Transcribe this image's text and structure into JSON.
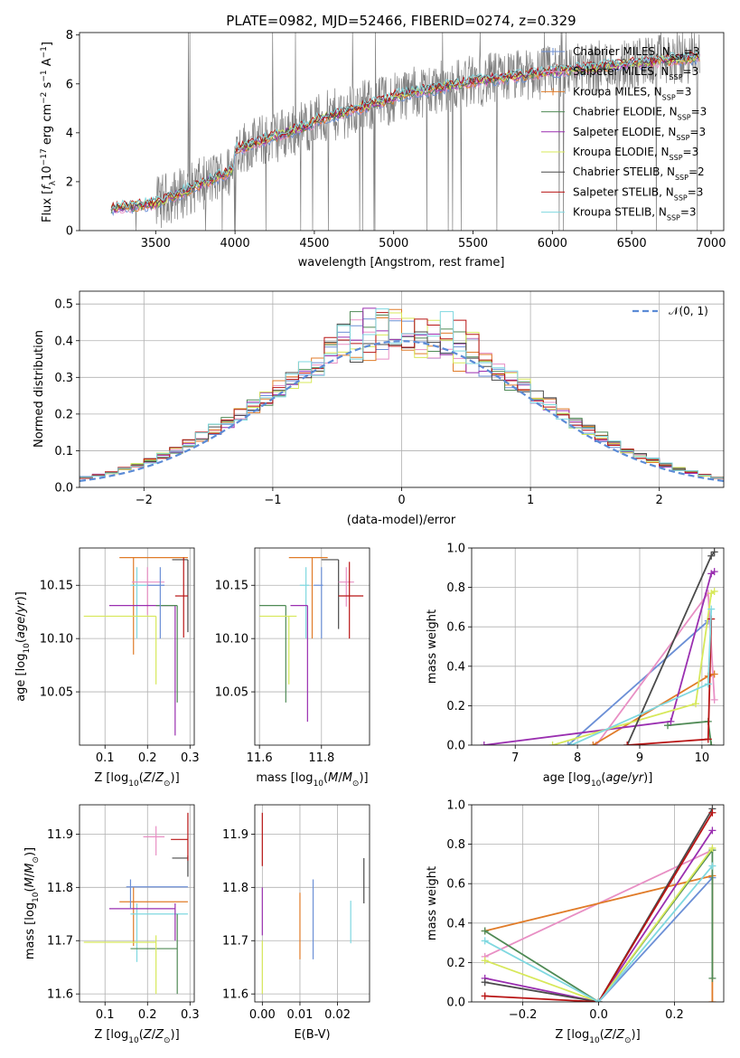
{
  "title": "PLATE=0982, MJD=52466, FIBERID=0274, z=0.329",
  "colors": {
    "Chabrier MILES": "#6b8fd6",
    "Salpeter MILES": "#e88fc4",
    "Kroupa MILES": "#e07b28",
    "Chabrier ELODIE": "#4f8a55",
    "Salpeter ELODIE": "#9a2fb0",
    "Kroupa ELODIE": "#d7e85a",
    "Chabrier STELIB": "#4a4a4a",
    "Salpeter STELIB": "#b81414",
    "Kroupa STELIB": "#7fd8e0",
    "data": "#7f7f7f",
    "normal": "#5b8bd6"
  },
  "chart_data": [
    {
      "id": "spectrum",
      "type": "line",
      "title": "PLATE=0982, MJD=52466, FIBERID=0274, z=0.329",
      "xlabel": "wavelength [Angstrom, rest frame]",
      "ylabel_parts": [
        "Flux [",
        "f",
        "λ",
        "10",
        "−17",
        " erg cm",
        "−2",
        " s",
        "−1",
        " A",
        "−1",
        "]"
      ],
      "xlim": [
        3020,
        7080
      ],
      "ylim": [
        0,
        8.1
      ],
      "xticks": [
        3500,
        4000,
        4500,
        5000,
        5500,
        6000,
        6500,
        7000
      ],
      "yticks": [
        0,
        2,
        4,
        6,
        8
      ],
      "x_range": [
        3220,
        6930
      ],
      "legend": [
        {
          "label": "Chabrier MILES, N",
          "sub": "SSP",
          "suffix": "=3",
          "color": "#6b8fd6"
        },
        {
          "label": "Salpeter MILES, N",
          "sub": "SSP",
          "suffix": "=3",
          "color": "#e88fc4"
        },
        {
          "label": "Kroupa MILES, N",
          "sub": "SSP",
          "suffix": "=3",
          "color": "#e07b28"
        },
        {
          "label": "Chabrier ELODIE, N",
          "sub": "SSP",
          "suffix": "=3",
          "color": "#4f8a55"
        },
        {
          "label": "Salpeter ELODIE, N",
          "sub": "SSP",
          "suffix": "=3",
          "color": "#9a2fb0"
        },
        {
          "label": "Kroupa ELODIE, N",
          "sub": "SSP",
          "suffix": "=3",
          "color": "#d7e85a"
        },
        {
          "label": "Chabrier STELIB, N",
          "sub": "SSP",
          "suffix": "=2",
          "color": "#4a4a4a"
        },
        {
          "label": "Salpeter STELIB, N",
          "sub": "SSP",
          "suffix": "=3",
          "color": "#b81414"
        },
        {
          "label": "Kroupa STELIB, N",
          "sub": "SSP",
          "suffix": "=3",
          "color": "#7fd8e0"
        }
      ]
    },
    {
      "id": "residuals",
      "type": "histogram",
      "xlabel": "(data-model)/error",
      "ylabel": "Normed distribution",
      "xlim": [
        -2.5,
        2.5
      ],
      "ylim": [
        0,
        0.535
      ],
      "xticks": [
        -2,
        -1,
        0,
        1,
        2
      ],
      "yticks": [
        0.0,
        0.1,
        0.2,
        0.3,
        0.4,
        0.5
      ],
      "bin_width": 0.1,
      "legend": [
        {
          "label": "𝒩(0, 1)",
          "color": "#5b8bd6",
          "dashed": true
        }
      ],
      "peaks": [
        0.38,
        0.5,
        0.4,
        0.45,
        0.41,
        0.37,
        0.45,
        0.44,
        0.4
      ],
      "series_count": 9
    },
    {
      "id": "age_vs_Z",
      "type": "errorbar",
      "xlabel": "Z [log10(Z/Z⊙)]",
      "ylabel": "age  [log10(age/yr)]",
      "xlim": [
        0.04,
        0.31
      ],
      "ylim": [
        10.0,
        10.185
      ],
      "xticks": [
        0.1,
        0.2,
        0.3
      ],
      "yticks": [
        10.05,
        10.1,
        10.15
      ],
      "points": [
        {
          "color": "#e07b28",
          "x": 0.167,
          "y": 10.176,
          "xerr": [
            0.134,
            0.295
          ],
          "yerr": [
            10.085,
            10.176
          ]
        },
        {
          "color": "#4a4a4a",
          "x": 0.295,
          "y": 10.174,
          "xerr": [
            0.258,
            0.295
          ],
          "yerr": [
            10.106,
            10.174
          ]
        },
        {
          "color": "#7fd8e0",
          "x": 0.175,
          "y": 10.15,
          "xerr": [
            0.16,
            0.2
          ],
          "yerr": [
            10.1,
            10.167
          ]
        },
        {
          "color": "#e88fc4",
          "x": 0.2,
          "y": 10.153,
          "xerr": [
            0.163,
            0.24
          ],
          "yerr": [
            10.122,
            10.167
          ]
        },
        {
          "color": "#b81414",
          "x": 0.285,
          "y": 10.14,
          "xerr": [
            0.265,
            0.295
          ],
          "yerr": [
            10.101,
            10.176
          ]
        },
        {
          "color": "#9a2fb0",
          "x": 0.265,
          "y": 10.131,
          "xerr": [
            0.11,
            0.265
          ],
          "yerr": [
            10.009,
            10.131
          ]
        },
        {
          "color": "#4f8a55",
          "x": 0.27,
          "y": 10.131,
          "xerr": [
            0.22,
            0.27
          ],
          "yerr": [
            10.04,
            10.131
          ]
        },
        {
          "color": "#d7e85a",
          "x": 0.22,
          "y": 10.121,
          "xerr": [
            0.05,
            0.22
          ],
          "yerr": [
            10.057,
            10.121
          ]
        },
        {
          "color": "#6b8fd6",
          "x": 0.23,
          "y": 10.15,
          "xerr": [
            0.2,
            0.24
          ],
          "yerr": [
            10.1,
            10.167
          ]
        }
      ]
    },
    {
      "id": "age_vs_mass",
      "type": "errorbar",
      "xlabel": "mass [log10(M/M⊙)]",
      "ylabel": "",
      "xlim": [
        11.585,
        11.955
      ],
      "ylim": [
        10.0,
        10.185
      ],
      "xticks": [
        11.6,
        11.8
      ],
      "yticks": [
        10.05,
        10.1,
        10.15
      ],
      "points": [
        {
          "color": "#e07b28",
          "x": 11.77,
          "y": 10.176,
          "xerr": [
            11.695,
            11.82
          ],
          "yerr": [
            10.1,
            10.176
          ]
        },
        {
          "color": "#4a4a4a",
          "x": 11.855,
          "y": 10.174,
          "xerr": [
            11.8,
            11.855
          ],
          "yerr": [
            10.109,
            10.174
          ]
        },
        {
          "color": "#7fd8e0",
          "x": 11.75,
          "y": 10.15,
          "xerr": [
            11.73,
            11.76
          ],
          "yerr": [
            10.1,
            10.167
          ]
        },
        {
          "color": "#e88fc4",
          "x": 11.88,
          "y": 10.153,
          "xerr": [
            11.855,
            11.905
          ],
          "yerr": [
            10.13,
            10.167
          ]
        },
        {
          "color": "#b81414",
          "x": 11.89,
          "y": 10.14,
          "xerr": [
            11.855,
            11.935
          ],
          "yerr": [
            10.1,
            10.172
          ]
        },
        {
          "color": "#9a2fb0",
          "x": 11.755,
          "y": 10.131,
          "xerr": [
            11.7,
            11.755
          ],
          "yerr": [
            10.022,
            10.131
          ]
        },
        {
          "color": "#4f8a55",
          "x": 11.685,
          "y": 10.131,
          "xerr": [
            11.6,
            11.685
          ],
          "yerr": [
            10.04,
            10.131
          ]
        },
        {
          "color": "#d7e85a",
          "x": 11.695,
          "y": 10.121,
          "xerr": [
            11.6,
            11.72
          ],
          "yerr": [
            10.057,
            10.121
          ]
        },
        {
          "color": "#6b8fd6",
          "x": 11.8,
          "y": 10.15,
          "xerr": [
            11.775,
            11.805
          ],
          "yerr": [
            10.1,
            10.167
          ]
        }
      ]
    },
    {
      "id": "massweight_vs_age",
      "type": "line",
      "xlabel": "age  [log10(age/yr)]",
      "ylabel": "mass weight",
      "xlim": [
        6.3,
        10.35
      ],
      "ylim": [
        0,
        1.0
      ],
      "xticks": [
        7,
        8,
        9,
        10
      ],
      "yticks": [
        0.0,
        0.2,
        0.4,
        0.6,
        0.8,
        1.0
      ],
      "series": [
        {
          "color": "#6b8fd6",
          "x": [
            7.85,
            10.1
          ],
          "y": [
            0.0,
            0.63
          ]
        },
        {
          "color": "#e88fc4",
          "x": [
            8.3,
            10.1,
            10.2
          ],
          "y": [
            0.0,
            0.77,
            0.23
          ]
        },
        {
          "color": "#e07b28",
          "x": [
            8.25,
            10.1,
            10.2
          ],
          "y": [
            0.0,
            0.35,
            0.36
          ]
        },
        {
          "color": "#4f8a55",
          "x": [
            9.45,
            10.1,
            10.15
          ],
          "y": [
            0.1,
            0.12,
            0.0
          ]
        },
        {
          "color": "#9a2fb0",
          "x": [
            6.5,
            9.5,
            10.15,
            10.2
          ],
          "y": [
            0.0,
            0.12,
            0.87,
            0.88
          ]
        },
        {
          "color": "#d7e85a",
          "x": [
            7.6,
            9.9,
            10.15,
            10.2
          ],
          "y": [
            0.0,
            0.21,
            0.77,
            0.78
          ]
        },
        {
          "color": "#4a4a4a",
          "x": [
            8.8,
            10.15,
            10.2
          ],
          "y": [
            0.0,
            0.96,
            0.98
          ]
        },
        {
          "color": "#b81414",
          "x": [
            8.8,
            10.1,
            10.15
          ],
          "y": [
            0.0,
            0.03,
            0.64
          ]
        },
        {
          "color": "#7fd8e0",
          "x": [
            7.9,
            10.1,
            10.15
          ],
          "y": [
            0.0,
            0.31,
            0.69
          ]
        }
      ]
    },
    {
      "id": "mass_vs_Z",
      "type": "errorbar",
      "xlabel": "Z [log10(Z/Z⊙)]",
      "ylabel": "mass [log10(M/M⊙)]",
      "xlim": [
        0.04,
        0.31
      ],
      "ylim": [
        11.585,
        11.955
      ],
      "xticks": [
        0.1,
        0.2,
        0.3
      ],
      "yticks": [
        11.6,
        11.7,
        11.8,
        11.9
      ],
      "points": [
        {
          "color": "#e07b28",
          "x": 0.167,
          "y": 11.773,
          "xerr": [
            0.134,
            0.295
          ],
          "yerr": [
            11.69,
            11.8
          ]
        },
        {
          "color": "#4a4a4a",
          "x": 0.295,
          "y": 11.855,
          "xerr": [
            0.258,
            0.295
          ],
          "yerr": [
            11.82,
            11.86
          ]
        },
        {
          "color": "#7fd8e0",
          "x": 0.175,
          "y": 11.75,
          "xerr": [
            0.16,
            0.295
          ],
          "yerr": [
            11.66,
            11.77
          ]
        },
        {
          "color": "#e88fc4",
          "x": 0.22,
          "y": 11.895,
          "xerr": [
            0.19,
            0.24
          ],
          "yerr": [
            11.86,
            11.915
          ]
        },
        {
          "color": "#b81414",
          "x": 0.295,
          "y": 11.89,
          "xerr": [
            0.255,
            0.295
          ],
          "yerr": [
            11.85,
            11.94
          ]
        },
        {
          "color": "#9a2fb0",
          "x": 0.265,
          "y": 11.76,
          "xerr": [
            0.11,
            0.265
          ],
          "yerr": [
            11.7,
            11.77
          ]
        },
        {
          "color": "#4f8a55",
          "x": 0.27,
          "y": 11.685,
          "xerr": [
            0.16,
            0.27
          ],
          "yerr": [
            11.6,
            11.75
          ]
        },
        {
          "color": "#d7e85a",
          "x": 0.22,
          "y": 11.697,
          "xerr": [
            0.05,
            0.22
          ],
          "yerr": [
            11.6,
            11.71
          ]
        },
        {
          "color": "#6b8fd6",
          "x": 0.16,
          "y": 11.801,
          "xerr": [
            0.15,
            0.295
          ],
          "yerr": [
            11.76,
            11.815
          ]
        }
      ]
    },
    {
      "id": "mass_vs_ebv",
      "type": "errorbar",
      "xlabel": "E(B-V)",
      "ylabel": "",
      "xlim": [
        -0.002,
        0.0285
      ],
      "ylim": [
        11.585,
        11.955
      ],
      "xticks": [
        0.0,
        0.01,
        0.02
      ],
      "yticks": [
        11.6,
        11.7,
        11.8,
        11.9
      ],
      "points": [
        {
          "color": "#b81414",
          "x": 0.0,
          "y": 11.89,
          "xerr": [
            0.0,
            0.0
          ],
          "yerr": [
            11.84,
            11.94
          ]
        },
        {
          "color": "#9a2fb0",
          "x": 0.0,
          "y": 11.76,
          "xerr": [
            0.0,
            0.0
          ],
          "yerr": [
            11.71,
            11.8
          ]
        },
        {
          "color": "#d7e85a",
          "x": 0.0,
          "y": 11.65,
          "xerr": [
            0.0,
            0.0
          ],
          "yerr": [
            11.6,
            11.7
          ]
        },
        {
          "color": "#e07b28",
          "x": 0.01,
          "y": 11.725,
          "xerr": [
            0.01,
            0.01
          ],
          "yerr": [
            11.665,
            11.79
          ]
        },
        {
          "color": "#6b8fd6",
          "x": 0.0135,
          "y": 11.74,
          "xerr": [
            0.0135,
            0.0135
          ],
          "yerr": [
            11.665,
            11.815
          ]
        },
        {
          "color": "#7fd8e0",
          "x": 0.0235,
          "y": 11.735,
          "xerr": [
            0.0235,
            0.0235
          ],
          "yerr": [
            11.695,
            11.775
          ]
        },
        {
          "color": "#4a4a4a",
          "x": 0.027,
          "y": 11.81,
          "xerr": [
            0.027,
            0.027
          ],
          "yerr": [
            11.77,
            11.855
          ]
        }
      ]
    },
    {
      "id": "massweight_vs_Z",
      "type": "line",
      "xlabel": "Z [log10(Z/Z⊙)]",
      "ylabel": "mass weight",
      "xlim": [
        -0.335,
        0.33
      ],
      "ylim": [
        0,
        1.0
      ],
      "xticks": [
        -0.2,
        0.0,
        0.2
      ],
      "yticks": [
        0.0,
        0.2,
        0.4,
        0.6,
        0.8,
        1.0
      ],
      "series": [
        {
          "color": "#6b8fd6",
          "x": [
            0.0,
            0.3
          ],
          "y": [
            0.0,
            0.63
          ]
        },
        {
          "color": "#e88fc4",
          "x": [
            -0.3,
            0.3
          ],
          "y": [
            0.23,
            0.77
          ]
        },
        {
          "color": "#e07b28",
          "x": [
            -0.3,
            0.3,
            0.3
          ],
          "y": [
            0.36,
            0.64,
            0.0
          ]
        },
        {
          "color": "#4f8a55",
          "x": [
            -0.3,
            0.0,
            0.3,
            0.3
          ],
          "y": [
            0.36,
            0.0,
            0.77,
            0.12
          ]
        },
        {
          "color": "#9a2fb0",
          "x": [
            -0.3,
            0.0,
            0.3
          ],
          "y": [
            0.12,
            0.0,
            0.87
          ]
        },
        {
          "color": "#d7e85a",
          "x": [
            -0.3,
            0.0,
            0.3
          ],
          "y": [
            0.21,
            0.0,
            0.78
          ]
        },
        {
          "color": "#4a4a4a",
          "x": [
            -0.3,
            0.0,
            0.3
          ],
          "y": [
            0.1,
            0.0,
            0.98
          ]
        },
        {
          "color": "#b81414",
          "x": [
            -0.3,
            0.0,
            0.3
          ],
          "y": [
            0.03,
            0.0,
            0.96
          ]
        },
        {
          "color": "#7fd8e0",
          "x": [
            -0.3,
            0.0,
            0.3
          ],
          "y": [
            0.31,
            0.0,
            0.69
          ]
        }
      ]
    }
  ]
}
